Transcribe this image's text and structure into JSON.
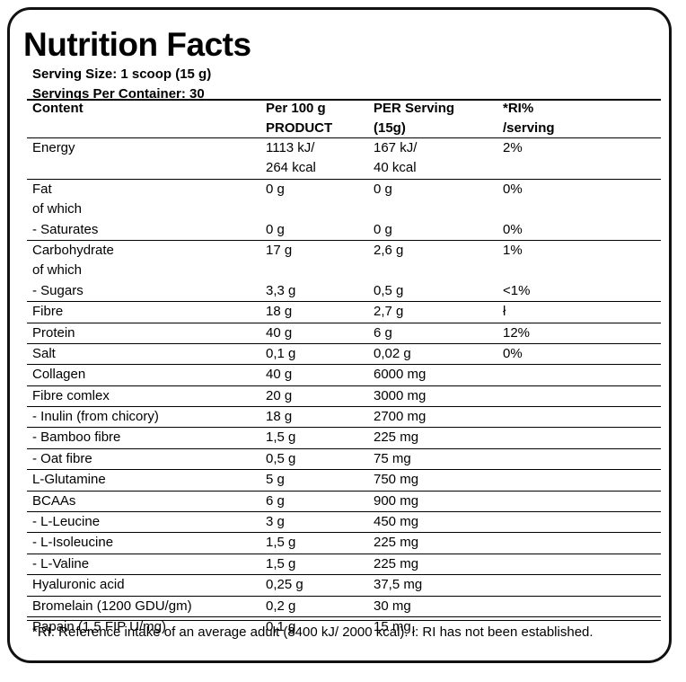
{
  "title": "Nutrition Facts",
  "serving_size": "Serving Size: 1 scoop (15 g)",
  "servings_per_container": "Servings Per Container: 30",
  "header": {
    "content": "Content",
    "per100_l1": "Per 100 g",
    "per100_l2": "PRODUCT",
    "perserving_l1": "PER Serving",
    "perserving_l2": "(15g)",
    "ri_l1": "*RI%",
    "ri_l2": "/serving"
  },
  "rows": [
    {
      "lines": [
        [
          "Energy",
          "1113 kJ/",
          "167 kJ/",
          "2%"
        ],
        [
          "",
          "264 kcal",
          "40 kcal",
          ""
        ]
      ]
    },
    {
      "lines": [
        [
          "Fat",
          "0 g",
          "0 g",
          "0%"
        ],
        [
          "of which",
          "",
          "",
          ""
        ],
        [
          "- Saturates",
          "0 g",
          "0 g",
          "0%"
        ]
      ]
    },
    {
      "lines": [
        [
          "Carbohydrate",
          "17 g",
          "2,6 g",
          "1%"
        ],
        [
          "of which",
          "",
          "",
          ""
        ],
        [
          "- Sugars",
          "3,3 g",
          "0,5 g",
          "<1%"
        ]
      ]
    },
    {
      "lines": [
        [
          "Fibre",
          "18 g",
          "2,7 g",
          "ł"
        ]
      ]
    },
    {
      "lines": [
        [
          "Protein",
          "40 g",
          "6 g",
          "12%"
        ]
      ]
    },
    {
      "lines": [
        [
          "Salt",
          "0,1 g",
          "0,02 g",
          "0%"
        ]
      ]
    },
    {
      "lines": [
        [
          "Collagen",
          "40 g",
          "6000 mg",
          ""
        ]
      ]
    },
    {
      "lines": [
        [
          "Fibre comlex",
          "20 g",
          "3000 mg",
          ""
        ]
      ]
    },
    {
      "lines": [
        [
          "- Inulin (from chicory)",
          "18 g",
          "2700 mg",
          ""
        ]
      ]
    },
    {
      "lines": [
        [
          "- Bamboo fibre",
          "1,5 g",
          "225 mg",
          ""
        ]
      ]
    },
    {
      "lines": [
        [
          "- Oat fibre",
          "0,5 g",
          "75 mg",
          ""
        ]
      ]
    },
    {
      "lines": [
        [
          "L-Glutamine",
          "5 g",
          "750 mg",
          ""
        ]
      ]
    },
    {
      "lines": [
        [
          "BCAAs",
          "6 g",
          "900 mg",
          ""
        ]
      ]
    },
    {
      "lines": [
        [
          "- L-Leucine",
          "3 g",
          "450 mg",
          ""
        ]
      ]
    },
    {
      "lines": [
        [
          "- L-Isoleucine",
          "1,5 g",
          "225 mg",
          ""
        ]
      ]
    },
    {
      "lines": [
        [
          "- L-Valine",
          "1,5 g",
          "225 mg",
          ""
        ]
      ]
    },
    {
      "lines": [
        [
          "Hyaluronic acid",
          "0,25 g",
          "37,5 mg",
          ""
        ]
      ]
    },
    {
      "lines": [
        [
          "Bromelain (1200 GDU/gm)",
          "0,2 g",
          "30 mg",
          ""
        ]
      ]
    },
    {
      "lines": [
        [
          "Papain (1,5 FIP U/mg)",
          "0,1 g",
          "15 mg",
          ""
        ]
      ]
    }
  ],
  "footnote": "*RI: Reference intake of an average adult (8400 kJ/ 2000 kcal). ł: RI has not been established."
}
